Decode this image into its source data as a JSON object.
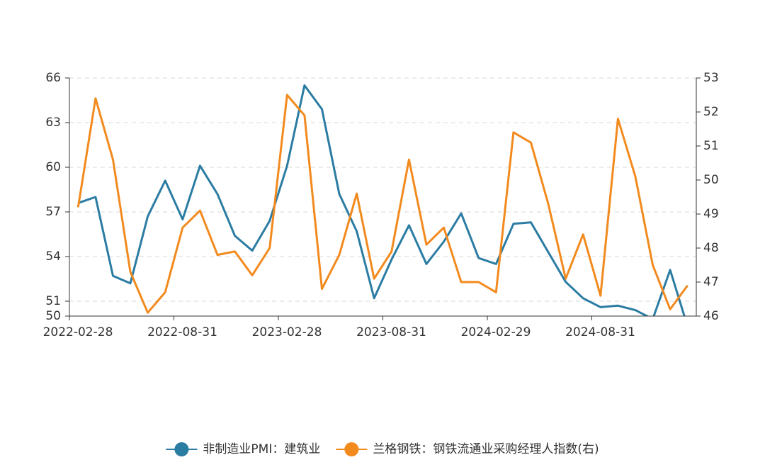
{
  "chart_data": {
    "type": "line",
    "categories": [
      "2022-02-28",
      null,
      null,
      null,
      null,
      null,
      "2022-08-31",
      null,
      null,
      null,
      null,
      null,
      "2023-02-28",
      null,
      null,
      null,
      null,
      null,
      "2023-08-31",
      null,
      null,
      null,
      null,
      null,
      "2024-02-29",
      null,
      null,
      null,
      null,
      null,
      "2024-08-31",
      null,
      null,
      null,
      null,
      null
    ],
    "ylim": [
      50,
      66
    ],
    "yticks": [
      50,
      51,
      54,
      57,
      60,
      63,
      66
    ],
    "y2lim": [
      46,
      53
    ],
    "y2ticks": [
      46,
      47,
      48,
      49,
      50,
      51,
      52,
      53
    ],
    "grid": true,
    "legend": "bottom",
    "series": [
      {
        "name": "非制造业PMI：建筑业",
        "color": "#2b7ca3",
        "axis": "y",
        "values": [
          57.6,
          58.0,
          52.7,
          52.2,
          56.7,
          59.1,
          56.5,
          60.1,
          58.2,
          55.4,
          54.4,
          56.4,
          60.1,
          65.5,
          63.9,
          58.2,
          55.7,
          51.2,
          53.8,
          56.1,
          53.5,
          55.0,
          56.9,
          53.9,
          53.5,
          56.2,
          56.3,
          54.3,
          52.3,
          51.2,
          50.6,
          50.7,
          50.4,
          49.8,
          53.1,
          49.3
        ]
      },
      {
        "name": "兰格钢铁：钢铁流通业采购经理人指数(右)",
        "color": "#f28a1e",
        "axis": "y2",
        "values": [
          49.2,
          52.4,
          50.6,
          47.3,
          46.1,
          46.7,
          48.6,
          49.1,
          47.8,
          47.9,
          47.2,
          48.0,
          52.5,
          51.9,
          46.8,
          47.8,
          49.6,
          47.1,
          47.9,
          50.6,
          48.1,
          48.6,
          47.0,
          47.0,
          46.7,
          51.4,
          51.1,
          49.3,
          47.1,
          48.4,
          46.6,
          51.8,
          50.1,
          47.5,
          46.2,
          46.9
        ]
      }
    ]
  }
}
